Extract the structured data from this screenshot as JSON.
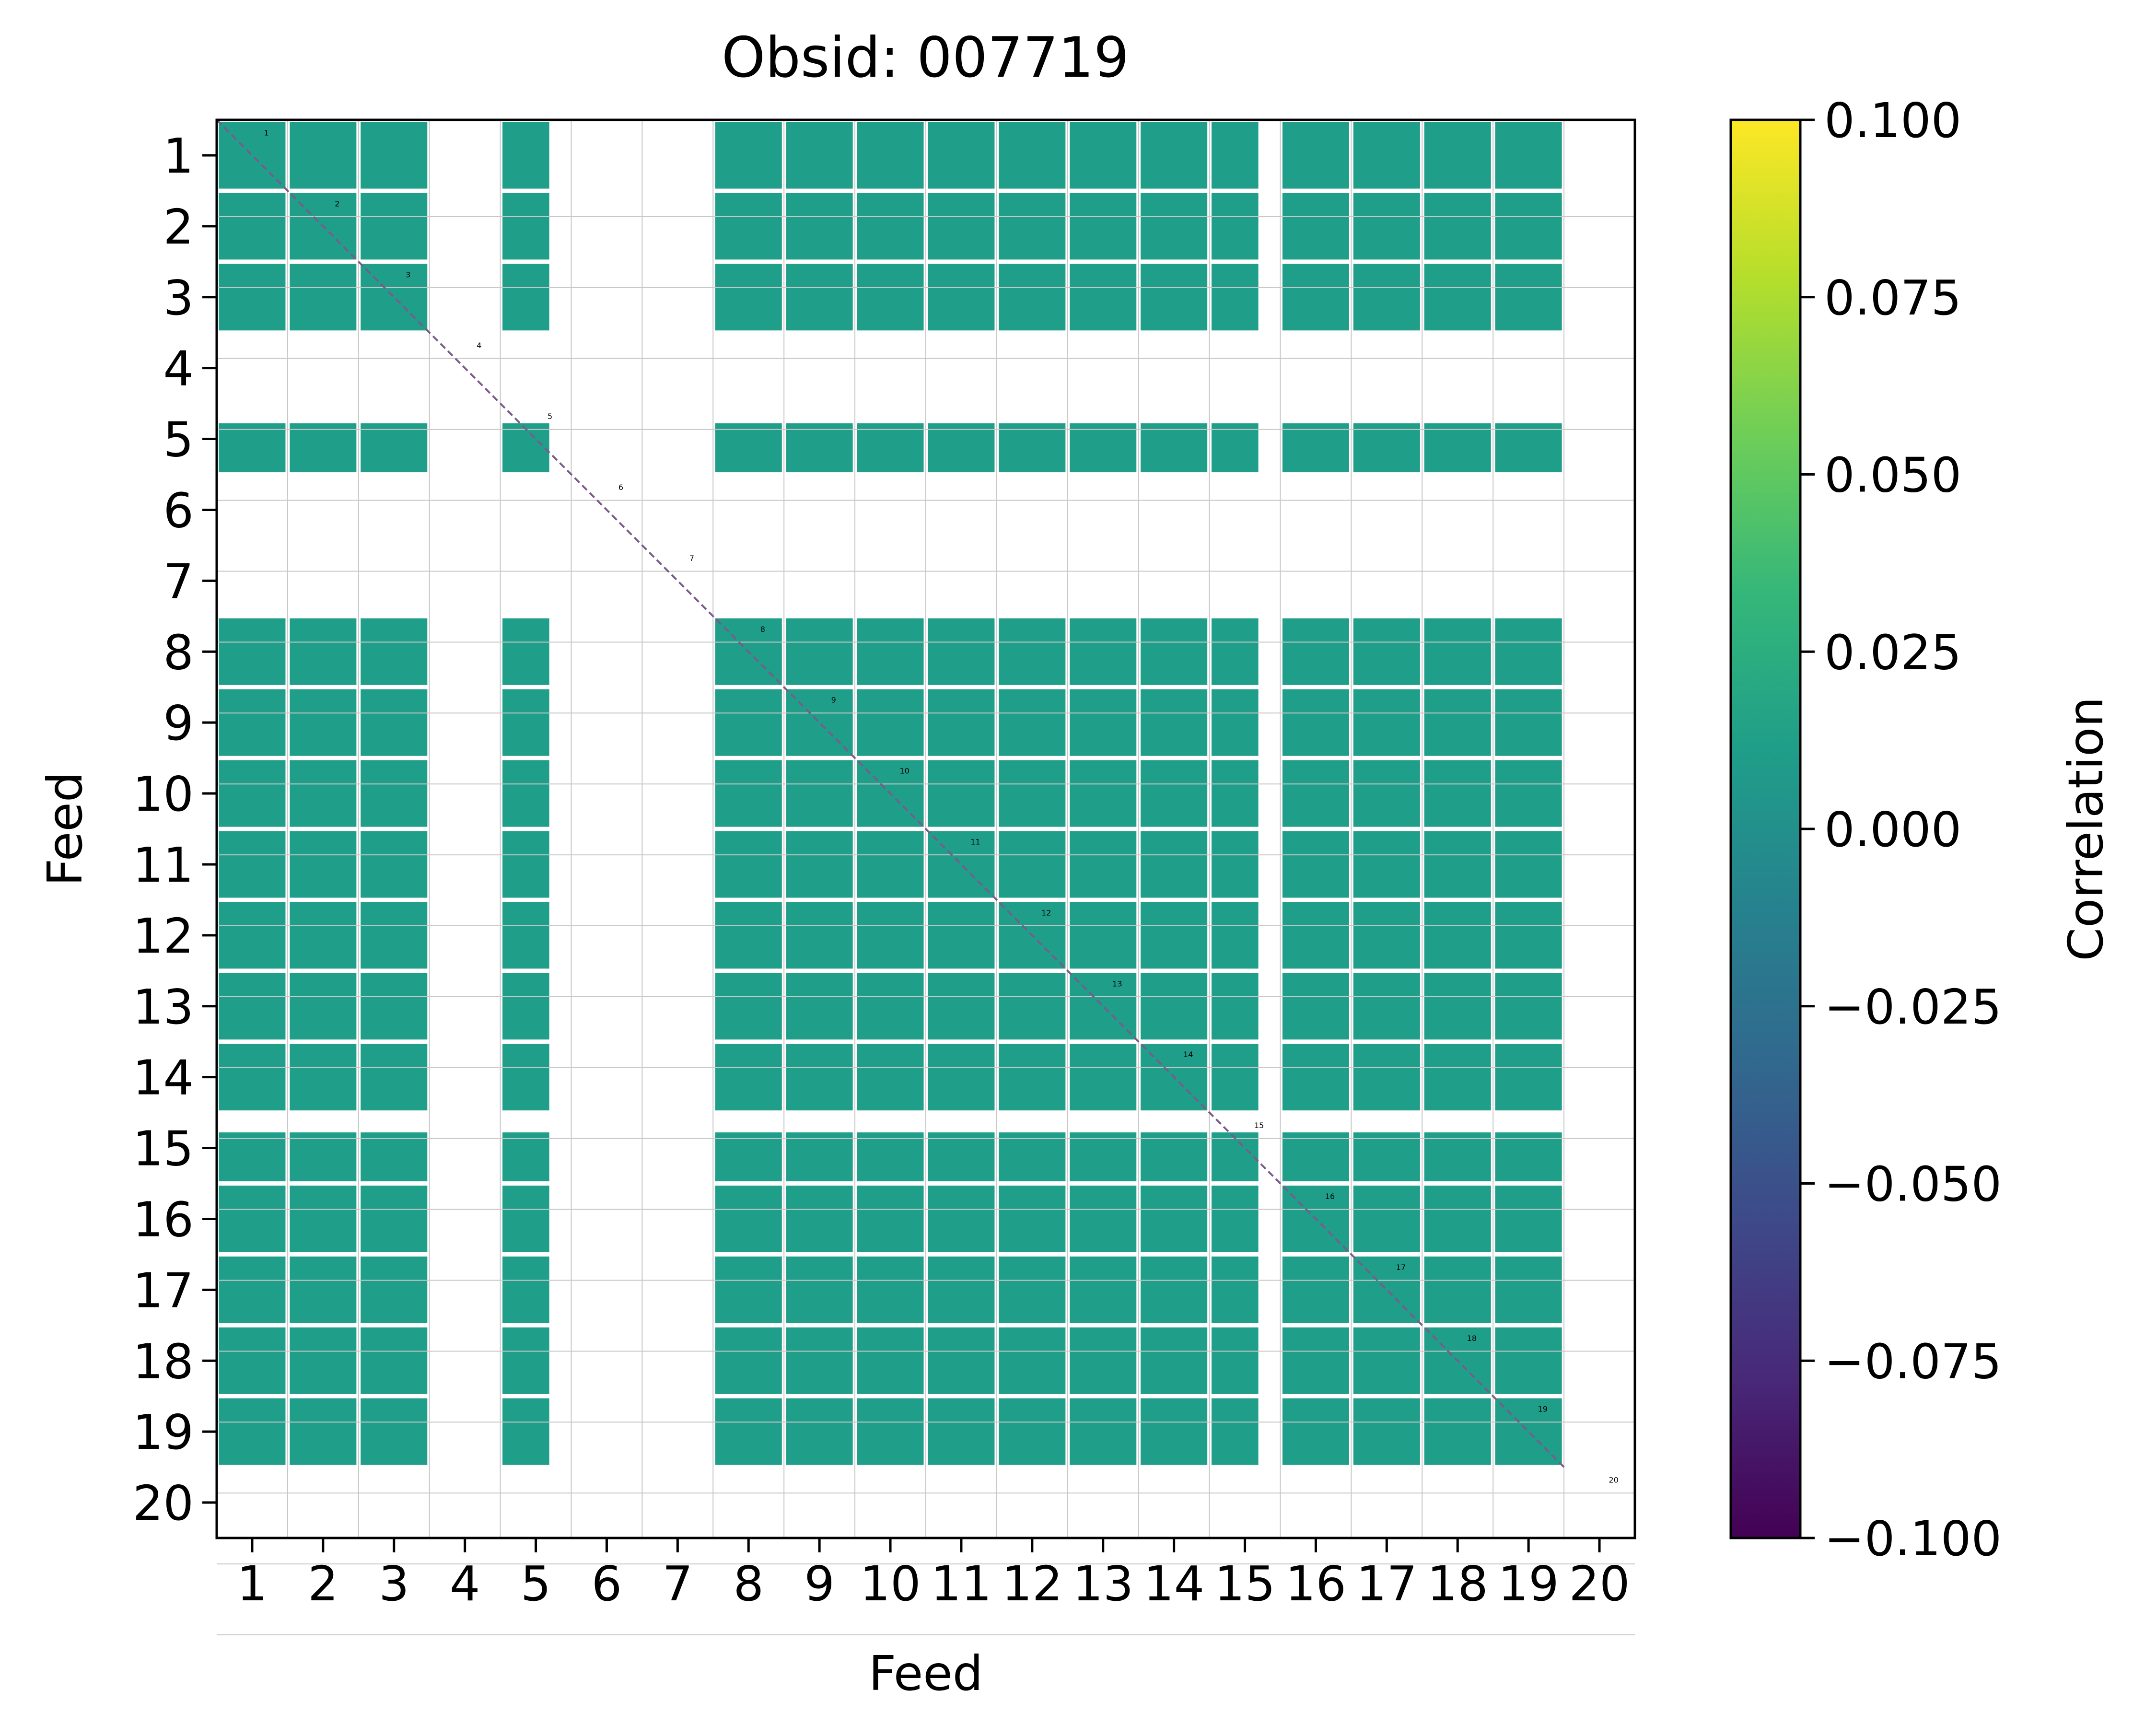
{
  "chart_data": {
    "type": "heatmap",
    "title": "Obsid: 007719",
    "xlabel": "Feed",
    "ylabel": "Feed",
    "feeds": [
      1,
      2,
      3,
      4,
      5,
      6,
      7,
      8,
      9,
      10,
      11,
      12,
      13,
      14,
      15,
      16,
      17,
      18,
      19,
      20
    ],
    "x_tick_labels": [
      "1",
      "2",
      "3",
      "4",
      "5",
      "6",
      "7",
      "8",
      "9",
      "10",
      "11",
      "12",
      "13",
      "14",
      "15",
      "16",
      "17",
      "18",
      "19",
      "20"
    ],
    "y_tick_labels": [
      "1",
      "2",
      "3",
      "4",
      "5",
      "6",
      "7",
      "8",
      "9",
      "10",
      "11",
      "12",
      "13",
      "14",
      "15",
      "16",
      "17",
      "18",
      "19",
      "20"
    ],
    "diagonal_labels": [
      "1",
      "2",
      "3",
      "4",
      "5",
      "6",
      "7",
      "8",
      "9",
      "10",
      "11",
      "12",
      "13",
      "14",
      "15",
      "16",
      "17",
      "18",
      "19",
      "20"
    ],
    "masked_feeds": [
      4,
      6,
      7,
      20
    ],
    "partially_masked_feeds": [
      5,
      15
    ],
    "valid_cell_value": 0.0,
    "grid": true,
    "colorbar": {
      "label": "Correlation",
      "vmin": -0.1,
      "vmax": 0.1,
      "colormap": "viridis",
      "ticks": [
        0.1,
        0.075,
        0.05,
        0.025,
        0.0,
        -0.025,
        -0.05,
        -0.075,
        -0.1
      ],
      "tick_labels": [
        "0.100",
        "0.075",
        "0.050",
        "0.025",
        "0.000",
        "−0.025",
        "−0.050",
        "−0.075",
        "−0.100"
      ]
    }
  },
  "colors": {
    "cell": "#21918c",
    "background": "#ffffff",
    "grid": "#c8c8c8",
    "diagonal": "#7a5c8a",
    "viridis": [
      "#440154",
      "#482878",
      "#3e4989",
      "#31688e",
      "#26828e",
      "#1f9e89",
      "#35b779",
      "#6ece58",
      "#b5de2b",
      "#fde725"
    ]
  }
}
